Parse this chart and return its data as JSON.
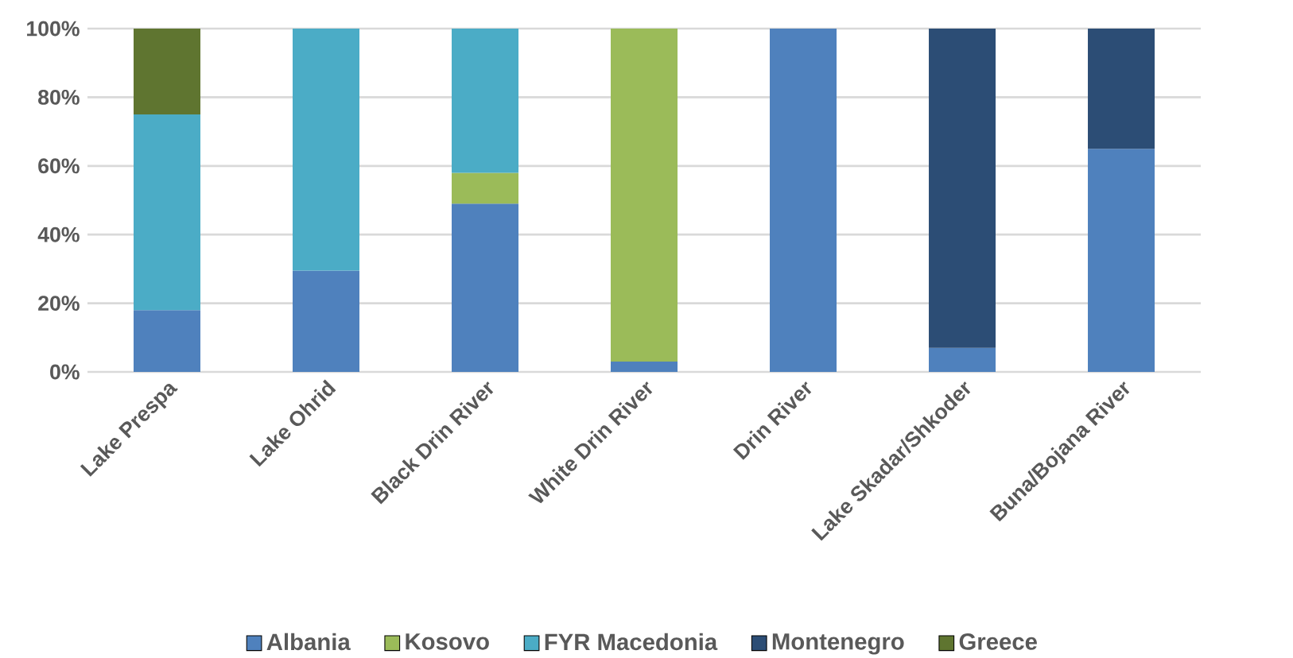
{
  "chart_data": {
    "type": "bar",
    "stacked": true,
    "categories": [
      "Lake Prespa",
      "Lake Ohrid",
      "Black Drin River",
      "White Drin River",
      "Drin River",
      "Lake Skadar/Shkoder",
      "Buna/Bojana River"
    ],
    "series": [
      {
        "name": "Albania",
        "color": "#4f81bd",
        "values": [
          18,
          29.5,
          49,
          3,
          100,
          7,
          65
        ]
      },
      {
        "name": "Kosovo",
        "color": "#9bbb59",
        "values": [
          null,
          null,
          9,
          97,
          null,
          null,
          null
        ]
      },
      {
        "name": "FYR Macedonia",
        "color": "#4bacc6",
        "values": [
          57,
          70.5,
          42,
          null,
          null,
          null,
          null
        ]
      },
      {
        "name": "Montenegro",
        "color": "#2c4d75",
        "values": [
          null,
          null,
          null,
          null,
          null,
          93,
          35
        ]
      },
      {
        "name": "Greece",
        "color": "#5f7530",
        "values": [
          25,
          null,
          null,
          null,
          null,
          null,
          null
        ]
      }
    ],
    "ylim": [
      0,
      100
    ],
    "yticks": [
      {
        "value": 0,
        "label": "0%"
      },
      {
        "value": 20,
        "label": "20%"
      },
      {
        "value": 40,
        "label": "40%"
      },
      {
        "value": 60,
        "label": "60%"
      },
      {
        "value": 80,
        "label": "80%"
      },
      {
        "value": 100,
        "label": "100%"
      }
    ],
    "grid": "y",
    "legend": "bottom"
  }
}
